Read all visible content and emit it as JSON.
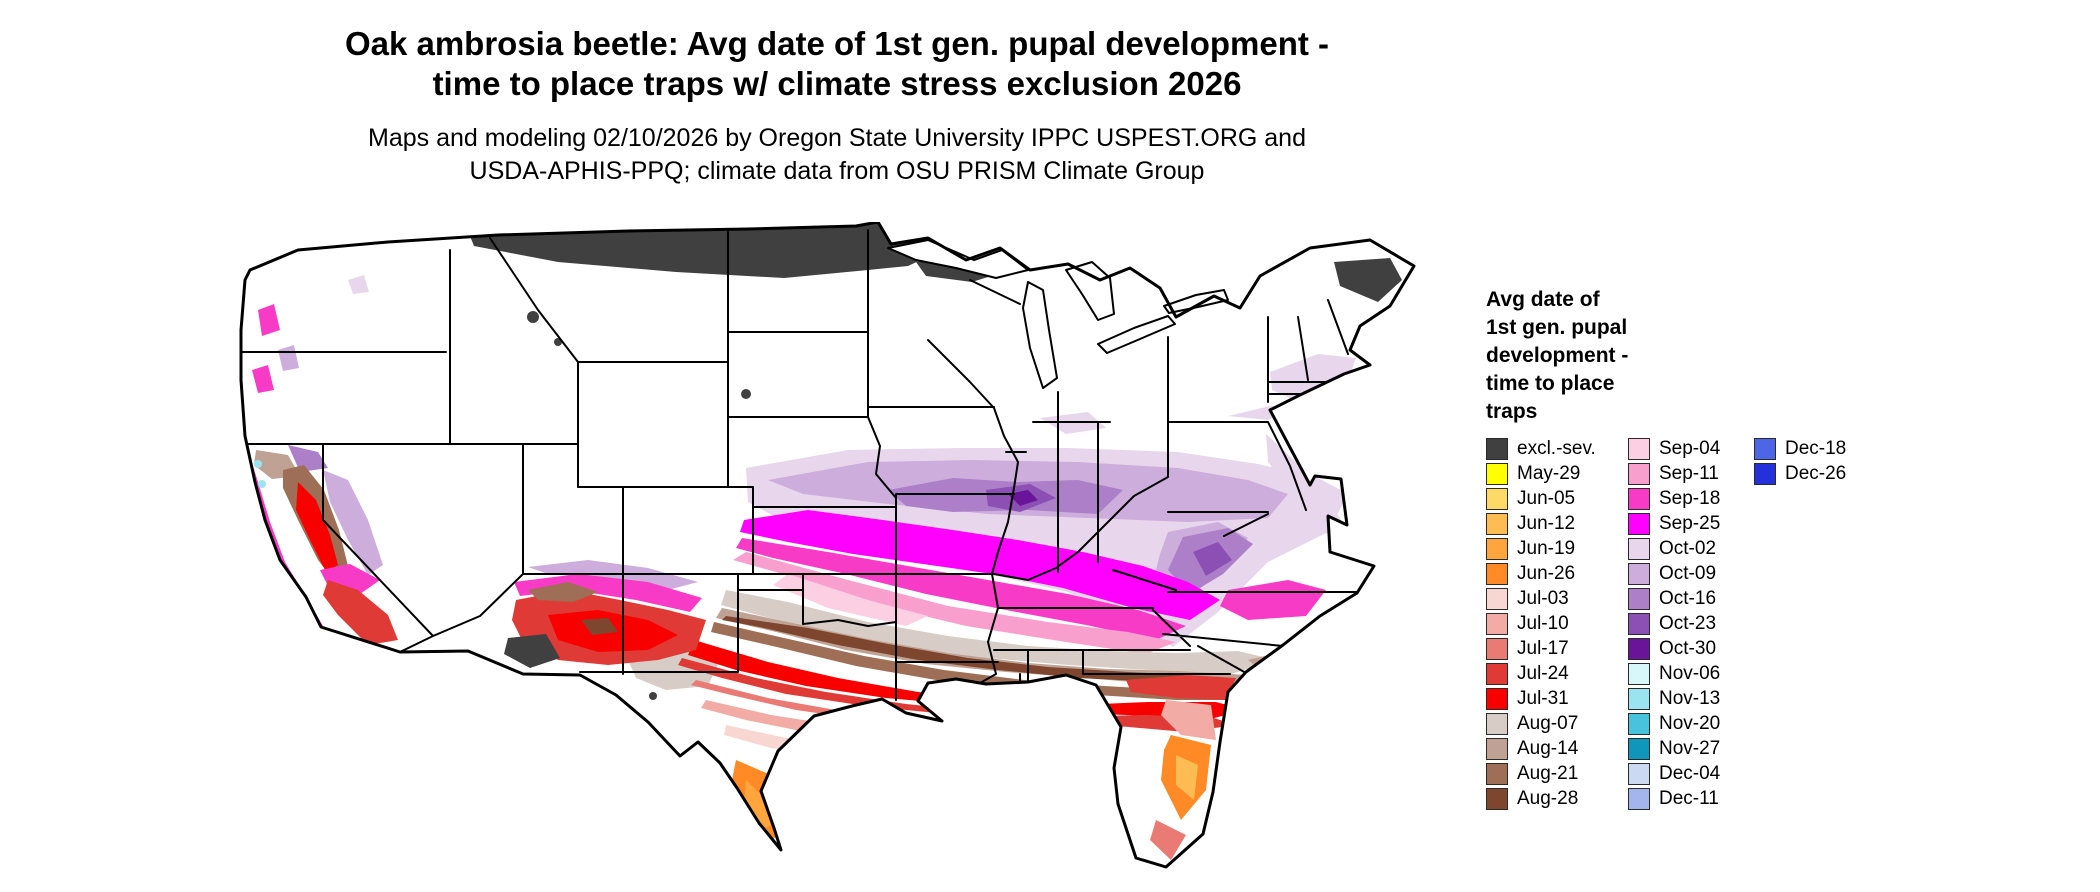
{
  "title": {
    "line1": "Oak ambrosia beetle: Avg date of 1st gen. pupal development -",
    "line2": "time to place traps w/ climate stress exclusion 2026"
  },
  "subtitle": {
    "line1": "Maps and modeling 02/10/2026 by Oregon State University IPPC USPEST.ORG and",
    "line2": "USDA-APHIS-PPQ; climate data from OSU PRISM Climate Group"
  },
  "legend": {
    "title_lines": [
      "Avg date of",
      "1st gen. pupal",
      "development -",
      "time to place",
      "traps"
    ],
    "columns": [
      [
        {
          "label": "excl.-sev.",
          "key": "excl_sev"
        },
        {
          "label": "May-29",
          "key": "may29"
        },
        {
          "label": "Jun-05",
          "key": "jun05"
        },
        {
          "label": "Jun-12",
          "key": "jun12"
        },
        {
          "label": "Jun-19",
          "key": "jun19"
        },
        {
          "label": "Jun-26",
          "key": "jun26"
        },
        {
          "label": "Jul-03",
          "key": "jul03"
        },
        {
          "label": "Jul-10",
          "key": "jul10"
        },
        {
          "label": "Jul-17",
          "key": "jul17"
        },
        {
          "label": "Jul-24",
          "key": "jul24"
        },
        {
          "label": "Jul-31",
          "key": "jul31"
        },
        {
          "label": "Aug-07",
          "key": "aug07"
        },
        {
          "label": "Aug-14",
          "key": "aug14"
        },
        {
          "label": "Aug-21",
          "key": "aug21"
        },
        {
          "label": "Aug-28",
          "key": "aug28"
        }
      ],
      [
        {
          "label": "Sep-04",
          "key": "sep04"
        },
        {
          "label": "Sep-11",
          "key": "sep11"
        },
        {
          "label": "Sep-18",
          "key": "sep18"
        },
        {
          "label": "Sep-25",
          "key": "sep25"
        },
        {
          "label": "Oct-02",
          "key": "oct02"
        },
        {
          "label": "Oct-09",
          "key": "oct09"
        },
        {
          "label": "Oct-16",
          "key": "oct16"
        },
        {
          "label": "Oct-23",
          "key": "oct23"
        },
        {
          "label": "Oct-30",
          "key": "oct30"
        },
        {
          "label": "Nov-06",
          "key": "nov06"
        },
        {
          "label": "Nov-13",
          "key": "nov13"
        },
        {
          "label": "Nov-20",
          "key": "nov20"
        },
        {
          "label": "Nov-27",
          "key": "nov27"
        },
        {
          "label": "Dec-04",
          "key": "dec04"
        },
        {
          "label": "Dec-11",
          "key": "dec11"
        }
      ],
      [
        {
          "label": "Dec-18",
          "key": "dec18"
        },
        {
          "label": "Dec-26",
          "key": "dec26"
        }
      ]
    ]
  },
  "palette": {
    "excl_sev": "#404040",
    "may29": "#FFFF00",
    "jun05": "#FFD966",
    "jun12": "#FFBC52",
    "jun19": "#FFA53D",
    "jun26": "#FF8A26",
    "jul03": "#F8D7D3",
    "jul10": "#F2ABA5",
    "jul17": "#EA7B74",
    "jul24": "#E03A36",
    "jul31": "#F80000",
    "aug07": "#D8CDC6",
    "aug14": "#BFA293",
    "aug21": "#9E6F56",
    "aug28": "#7E462F",
    "sep04": "#FCCFE3",
    "sep11": "#F89FCE",
    "sep18": "#F73BC6",
    "sep25": "#FF00FF",
    "oct02": "#E8D7EC",
    "oct09": "#CDADDC",
    "oct16": "#AC7FC8",
    "oct23": "#8C50B4",
    "oct30": "#6A1499",
    "nov06": "#D8F7FA",
    "nov13": "#9AE4F2",
    "nov20": "#49C2DE",
    "nov27": "#0F96BA",
    "dec04": "#CCD9F2",
    "dec11": "#A2B5EC",
    "dec18": "#4D66E6",
    "dec26": "#2430DC"
  },
  "map": {
    "no_data_color": "#FFFFFF",
    "border_color": "#000000"
  }
}
